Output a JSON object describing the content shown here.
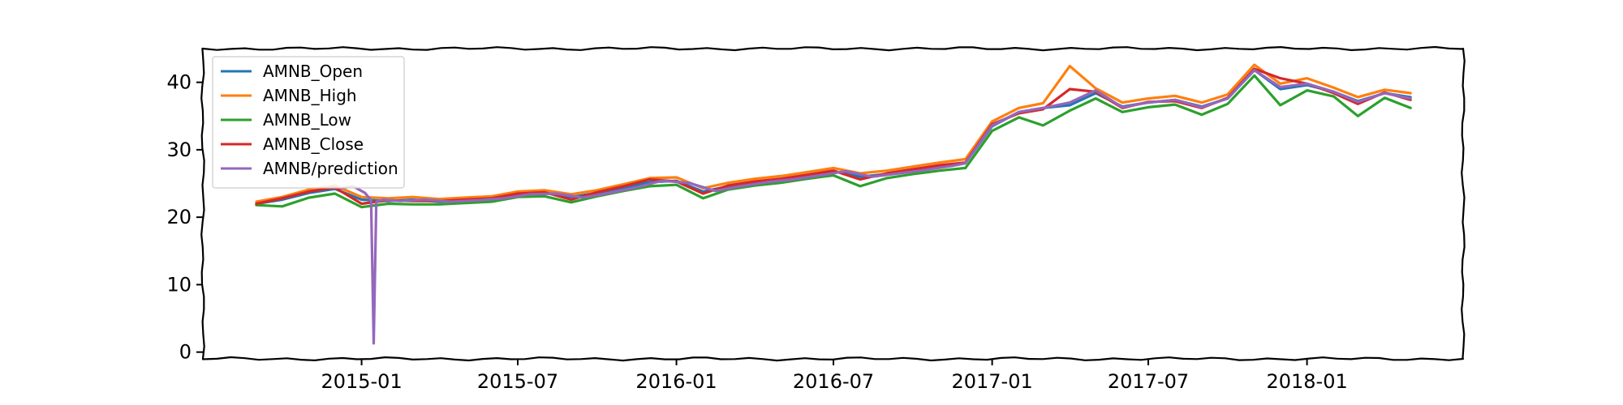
{
  "chart_data": {
    "type": "line",
    "title": "",
    "xlabel": "",
    "ylabel": "",
    "x_ticks": [
      "2015-01",
      "2015-07",
      "2016-01",
      "2016-07",
      "2017-01",
      "2017-07",
      "2018-01"
    ],
    "y_ticks": [
      0,
      10,
      20,
      30,
      40
    ],
    "xlim": [
      "2014-07-01",
      "2018-07-01"
    ],
    "ylim": [
      -1,
      45
    ],
    "grid": false,
    "legend_position": "top-left",
    "series": [
      {
        "name": "AMNB_Open",
        "color": "#1f77b4",
        "points": [
          [
            "2014-09-01",
            22.0
          ],
          [
            "2014-10-01",
            22.6
          ],
          [
            "2014-11-01",
            23.6
          ],
          [
            "2014-12-01",
            24.2
          ],
          [
            "2015-01-01",
            22.6
          ],
          [
            "2015-02-01",
            22.4
          ],
          [
            "2015-03-01",
            22.6
          ],
          [
            "2015-04-01",
            22.3
          ],
          [
            "2015-05-01",
            22.5
          ],
          [
            "2015-06-01",
            22.7
          ],
          [
            "2015-07-01",
            23.4
          ],
          [
            "2015-08-01",
            23.6
          ],
          [
            "2015-09-01",
            23.0
          ],
          [
            "2015-10-01",
            23.6
          ],
          [
            "2015-11-01",
            24.4
          ],
          [
            "2015-12-01",
            25.2
          ],
          [
            "2016-01-01",
            25.4
          ],
          [
            "2016-02-01",
            23.8
          ],
          [
            "2016-03-01",
            24.6
          ],
          [
            "2016-04-01",
            25.2
          ],
          [
            "2016-05-01",
            25.6
          ],
          [
            "2016-06-01",
            26.2
          ],
          [
            "2016-07-01",
            26.8
          ],
          [
            "2016-08-01",
            26.0
          ],
          [
            "2016-09-01",
            26.4
          ],
          [
            "2016-10-01",
            27.0
          ],
          [
            "2016-11-01",
            27.6
          ],
          [
            "2016-12-01",
            28.0
          ],
          [
            "2017-01-01",
            33.5
          ],
          [
            "2017-02-01",
            35.6
          ],
          [
            "2017-03-01",
            36.2
          ],
          [
            "2017-04-01",
            36.6
          ],
          [
            "2017-05-01",
            38.4
          ],
          [
            "2017-06-01",
            36.4
          ],
          [
            "2017-07-01",
            37.0
          ],
          [
            "2017-08-01",
            37.4
          ],
          [
            "2017-09-01",
            36.4
          ],
          [
            "2017-10-01",
            37.6
          ],
          [
            "2017-11-01",
            41.8
          ],
          [
            "2017-12-01",
            39.0
          ],
          [
            "2018-01-01",
            39.6
          ],
          [
            "2018-02-01",
            38.6
          ],
          [
            "2018-03-01",
            37.2
          ],
          [
            "2018-04-01",
            38.4
          ],
          [
            "2018-05-01",
            37.8
          ]
        ]
      },
      {
        "name": "AMNB_High",
        "color": "#ff7f0e",
        "points": [
          [
            "2014-09-01",
            22.3
          ],
          [
            "2014-10-01",
            23.0
          ],
          [
            "2014-11-01",
            24.1
          ],
          [
            "2014-12-01",
            24.7
          ],
          [
            "2015-01-01",
            23.0
          ],
          [
            "2015-02-01",
            22.8
          ],
          [
            "2015-03-01",
            23.0
          ],
          [
            "2015-04-01",
            22.7
          ],
          [
            "2015-05-01",
            22.9
          ],
          [
            "2015-06-01",
            23.1
          ],
          [
            "2015-07-01",
            23.8
          ],
          [
            "2015-08-01",
            24.0
          ],
          [
            "2015-09-01",
            23.4
          ],
          [
            "2015-10-01",
            24.0
          ],
          [
            "2015-11-01",
            24.9
          ],
          [
            "2015-12-01",
            25.8
          ],
          [
            "2016-01-01",
            25.9
          ],
          [
            "2016-02-01",
            24.3
          ],
          [
            "2016-03-01",
            25.1
          ],
          [
            "2016-04-01",
            25.7
          ],
          [
            "2016-05-01",
            26.1
          ],
          [
            "2016-06-01",
            26.7
          ],
          [
            "2016-07-01",
            27.3
          ],
          [
            "2016-08-01",
            26.5
          ],
          [
            "2016-09-01",
            26.9
          ],
          [
            "2016-10-01",
            27.5
          ],
          [
            "2016-11-01",
            28.1
          ],
          [
            "2016-12-01",
            28.6
          ],
          [
            "2017-01-01",
            34.2
          ],
          [
            "2017-02-01",
            36.2
          ],
          [
            "2017-03-01",
            36.9
          ],
          [
            "2017-04-01",
            42.4
          ],
          [
            "2017-05-01",
            39.1
          ],
          [
            "2017-06-01",
            37.0
          ],
          [
            "2017-07-01",
            37.6
          ],
          [
            "2017-08-01",
            38.0
          ],
          [
            "2017-09-01",
            37.0
          ],
          [
            "2017-10-01",
            38.2
          ],
          [
            "2017-11-01",
            42.6
          ],
          [
            "2017-12-01",
            39.8
          ],
          [
            "2018-01-01",
            40.6
          ],
          [
            "2018-02-01",
            39.2
          ],
          [
            "2018-03-01",
            37.8
          ],
          [
            "2018-04-01",
            38.9
          ],
          [
            "2018-05-01",
            38.4
          ]
        ]
      },
      {
        "name": "AMNB_Low",
        "color": "#2ca02c",
        "points": [
          [
            "2014-09-01",
            21.8
          ],
          [
            "2014-10-01",
            21.6
          ],
          [
            "2014-11-01",
            22.9
          ],
          [
            "2014-12-01",
            23.5
          ],
          [
            "2015-01-01",
            21.5
          ],
          [
            "2015-02-01",
            22.0
          ],
          [
            "2015-03-01",
            21.9
          ],
          [
            "2015-04-01",
            21.9
          ],
          [
            "2015-05-01",
            22.1
          ],
          [
            "2015-06-01",
            22.3
          ],
          [
            "2015-07-01",
            23.0
          ],
          [
            "2015-08-01",
            23.1
          ],
          [
            "2015-09-01",
            22.2
          ],
          [
            "2015-10-01",
            23.1
          ],
          [
            "2015-11-01",
            23.9
          ],
          [
            "2015-12-01",
            24.6
          ],
          [
            "2016-01-01",
            24.8
          ],
          [
            "2016-02-01",
            22.8
          ],
          [
            "2016-03-01",
            24.1
          ],
          [
            "2016-04-01",
            24.7
          ],
          [
            "2016-05-01",
            25.1
          ],
          [
            "2016-06-01",
            25.7
          ],
          [
            "2016-07-01",
            26.2
          ],
          [
            "2016-08-01",
            24.6
          ],
          [
            "2016-09-01",
            25.8
          ],
          [
            "2016-10-01",
            26.4
          ],
          [
            "2016-11-01",
            26.9
          ],
          [
            "2016-12-01",
            27.3
          ],
          [
            "2017-01-01",
            32.8
          ],
          [
            "2017-02-01",
            34.8
          ],
          [
            "2017-03-01",
            33.6
          ],
          [
            "2017-04-01",
            35.8
          ],
          [
            "2017-05-01",
            37.6
          ],
          [
            "2017-06-01",
            35.6
          ],
          [
            "2017-07-01",
            36.3
          ],
          [
            "2017-08-01",
            36.7
          ],
          [
            "2017-09-01",
            35.2
          ],
          [
            "2017-10-01",
            36.8
          ],
          [
            "2017-11-01",
            41.0
          ],
          [
            "2017-12-01",
            36.6
          ],
          [
            "2018-01-01",
            38.8
          ],
          [
            "2018-02-01",
            37.9
          ],
          [
            "2018-03-01",
            35.0
          ],
          [
            "2018-04-01",
            37.7
          ],
          [
            "2018-05-01",
            36.2
          ]
        ]
      },
      {
        "name": "AMNB_Close",
        "color": "#d62728",
        "points": [
          [
            "2014-09-01",
            22.0
          ],
          [
            "2014-10-01",
            22.8
          ],
          [
            "2014-11-01",
            23.8
          ],
          [
            "2014-12-01",
            24.4
          ],
          [
            "2015-01-01",
            22.0
          ],
          [
            "2015-02-01",
            22.5
          ],
          [
            "2015-03-01",
            22.4
          ],
          [
            "2015-04-01",
            22.4
          ],
          [
            "2015-05-01",
            22.6
          ],
          [
            "2015-06-01",
            22.8
          ],
          [
            "2015-07-01",
            23.5
          ],
          [
            "2015-08-01",
            23.7
          ],
          [
            "2015-09-01",
            22.6
          ],
          [
            "2015-10-01",
            23.7
          ],
          [
            "2015-11-01",
            24.6
          ],
          [
            "2015-12-01",
            25.6
          ],
          [
            "2016-01-01",
            25.3
          ],
          [
            "2016-02-01",
            23.5
          ],
          [
            "2016-03-01",
            24.7
          ],
          [
            "2016-04-01",
            25.3
          ],
          [
            "2016-05-01",
            25.7
          ],
          [
            "2016-06-01",
            26.3
          ],
          [
            "2016-07-01",
            26.9
          ],
          [
            "2016-08-01",
            25.6
          ],
          [
            "2016-09-01",
            26.5
          ],
          [
            "2016-10-01",
            27.1
          ],
          [
            "2016-11-01",
            27.7
          ],
          [
            "2016-12-01",
            28.1
          ],
          [
            "2017-01-01",
            33.8
          ],
          [
            "2017-02-01",
            35.4
          ],
          [
            "2017-03-01",
            36.0
          ],
          [
            "2017-04-01",
            39.0
          ],
          [
            "2017-05-01",
            38.6
          ],
          [
            "2017-06-01",
            36.2
          ],
          [
            "2017-07-01",
            37.1
          ],
          [
            "2017-08-01",
            37.2
          ],
          [
            "2017-09-01",
            36.2
          ],
          [
            "2017-10-01",
            37.7
          ],
          [
            "2017-11-01",
            42.0
          ],
          [
            "2017-12-01",
            40.6
          ],
          [
            "2018-01-01",
            39.8
          ],
          [
            "2018-02-01",
            38.4
          ],
          [
            "2018-03-01",
            36.8
          ],
          [
            "2018-04-01",
            38.5
          ],
          [
            "2018-05-01",
            37.4
          ]
        ]
      },
      {
        "name": "AMNB/prediction",
        "color": "#9467bd",
        "points": [
          [
            "2014-12-08",
            24.3
          ],
          [
            "2014-12-22",
            24.6
          ],
          [
            "2015-01-05",
            23.6
          ],
          [
            "2015-01-12",
            22.5
          ],
          [
            "2015-01-15",
            1.3
          ],
          [
            "2015-01-18",
            22.3
          ],
          [
            "2015-01-26",
            22.6
          ],
          [
            "2015-02-15",
            22.4
          ],
          [
            "2015-03-15",
            22.6
          ],
          [
            "2015-04-15",
            22.3
          ],
          [
            "2015-05-15",
            22.5
          ],
          [
            "2015-06-15",
            22.8
          ],
          [
            "2015-07-15",
            23.4
          ],
          [
            "2015-08-15",
            23.5
          ],
          [
            "2015-09-15",
            22.9
          ],
          [
            "2015-10-15",
            23.6
          ],
          [
            "2015-11-15",
            24.4
          ],
          [
            "2015-12-15",
            25.4
          ],
          [
            "2016-01-15",
            25.1
          ],
          [
            "2016-02-15",
            23.9
          ],
          [
            "2016-03-15",
            24.6
          ],
          [
            "2016-04-15",
            25.2
          ],
          [
            "2016-05-15",
            25.6
          ],
          [
            "2016-06-15",
            26.2
          ],
          [
            "2016-07-15",
            26.8
          ],
          [
            "2016-08-15",
            26.0
          ],
          [
            "2016-09-15",
            26.5
          ],
          [
            "2016-10-15",
            27.0
          ],
          [
            "2016-11-15",
            27.6
          ],
          [
            "2016-12-01",
            28.0
          ],
          [
            "2017-01-01",
            33.6
          ],
          [
            "2017-02-01",
            35.6
          ],
          [
            "2017-03-01",
            36.2
          ],
          [
            "2017-04-01",
            37.0
          ],
          [
            "2017-05-01",
            38.8
          ],
          [
            "2017-06-01",
            36.3
          ],
          [
            "2017-07-01",
            37.0
          ],
          [
            "2017-08-01",
            37.4
          ],
          [
            "2017-09-01",
            36.3
          ],
          [
            "2017-10-01",
            37.6
          ],
          [
            "2017-11-01",
            41.8
          ],
          [
            "2017-12-01",
            39.3
          ],
          [
            "2018-01-01",
            39.8
          ],
          [
            "2018-02-01",
            38.6
          ],
          [
            "2018-03-01",
            37.1
          ],
          [
            "2018-04-01",
            38.4
          ],
          [
            "2018-05-01",
            37.6
          ]
        ]
      }
    ]
  }
}
